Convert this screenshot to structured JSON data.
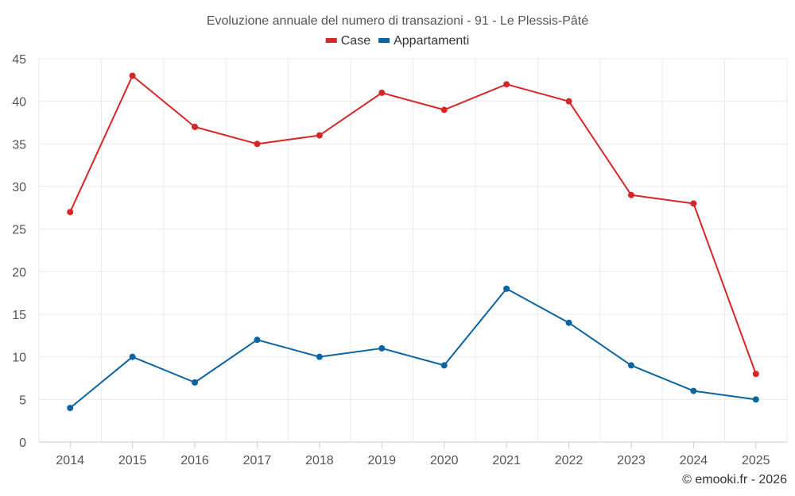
{
  "chart_data": {
    "type": "line",
    "title": "Evoluzione annuale del numero di transazioni - 91 - Le Plessis-Pâté",
    "categories": [
      "2014",
      "2015",
      "2016",
      "2017",
      "2018",
      "2019",
      "2020",
      "2021",
      "2022",
      "2023",
      "2024",
      "2025"
    ],
    "series": [
      {
        "name": "Case",
        "color": "#d62728",
        "values": [
          27,
          43,
          37,
          35,
          36,
          41,
          39,
          42,
          40,
          29,
          28,
          8
        ]
      },
      {
        "name": "Appartamenti",
        "color": "#0a64a0",
        "values": [
          4,
          10,
          7,
          12,
          10,
          11,
          9,
          18,
          14,
          9,
          6,
          5
        ]
      }
    ],
    "ylim": [
      0,
      45
    ],
    "yticks": [
      0,
      5,
      10,
      15,
      20,
      25,
      30,
      35,
      40,
      45
    ],
    "xlabel": "",
    "ylabel": "",
    "grid": true,
    "legend_position": "top-center"
  },
  "credit": "© emooki.fr - 2026"
}
